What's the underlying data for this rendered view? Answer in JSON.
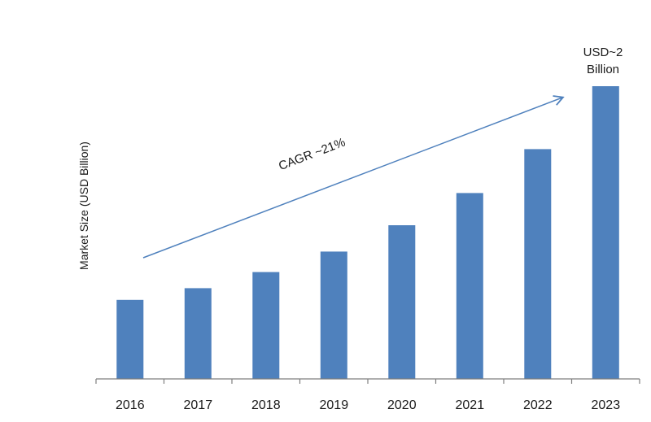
{
  "chart_data": {
    "type": "bar",
    "title": "",
    "xlabel": "",
    "ylabel": "Market Size (USD Billion)",
    "categories": [
      "2016",
      "2017",
      "2018",
      "2019",
      "2020",
      "2021",
      "2022",
      "2023"
    ],
    "values": [
      0.54,
      0.62,
      0.73,
      0.87,
      1.05,
      1.27,
      1.57,
      2.0
    ],
    "ylim": [
      0,
      2.0
    ],
    "grid": false,
    "legend": "none",
    "bar_color": "#4F81BD",
    "annotations": {
      "trend_label": "CAGR ~21%",
      "end_value_line1": "USD~2",
      "end_value_line2": "Billion"
    },
    "colors": {
      "bar": "#4F81BD",
      "arrow": "#4F81BD",
      "axis": "#7f7f7f"
    }
  }
}
